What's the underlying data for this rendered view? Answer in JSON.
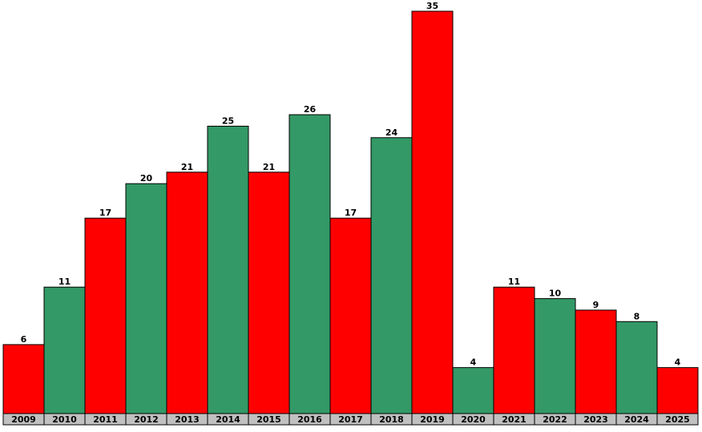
{
  "chart_data": {
    "type": "bar",
    "categories": [
      "2009",
      "2010",
      "2011",
      "2012",
      "2013",
      "2014",
      "2015",
      "2016",
      "2017",
      "2018",
      "2019",
      "2020",
      "2021",
      "2022",
      "2023",
      "2024",
      "2025"
    ],
    "values": [
      6,
      11,
      17,
      20,
      21,
      25,
      21,
      26,
      17,
      24,
      35,
      4,
      11,
      10,
      9,
      8,
      4
    ],
    "colors": [
      "#ff0000",
      "#339966",
      "#ff0000",
      "#339966",
      "#ff0000",
      "#339966",
      "#ff0000",
      "#339966",
      "#ff0000",
      "#339966",
      "#ff0000",
      "#339966",
      "#ff0000",
      "#339966",
      "#ff0000",
      "#339966",
      "#ff0000"
    ]
  }
}
